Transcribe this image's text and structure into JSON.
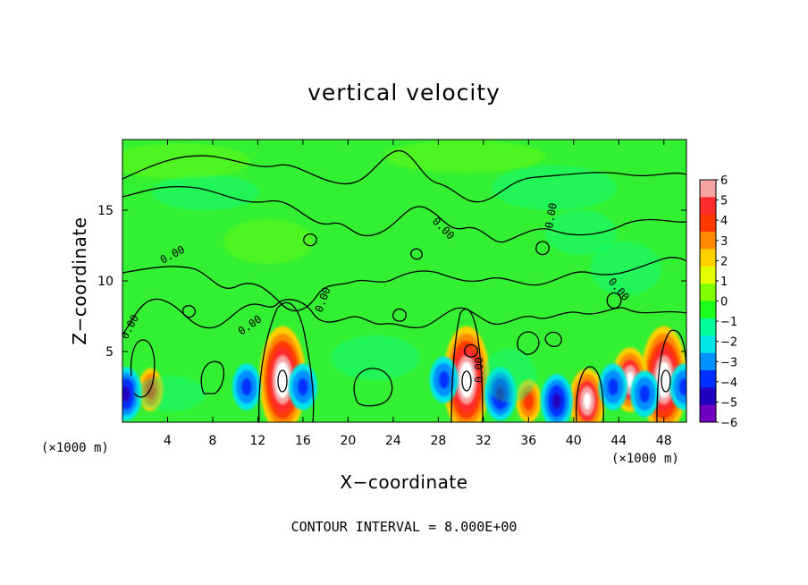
{
  "chart_data": {
    "type": "heatmap",
    "title": "vertical velocity",
    "xlabel": "X−coordinate",
    "ylabel": "Z−coordinate",
    "x_unit_left": "(×1000 m)",
    "x_unit_right": "(×1000 m)",
    "xlim": [
      0,
      50
    ],
    "ylim": [
      0,
      20
    ],
    "x_ticks": [
      "4",
      "8",
      "12",
      "16",
      "20",
      "24",
      "28",
      "32",
      "36",
      "40",
      "44",
      "48"
    ],
    "x_tick_values": [
      4,
      8,
      12,
      16,
      20,
      24,
      28,
      32,
      36,
      40,
      44,
      48
    ],
    "y_ticks": [
      "5",
      "10",
      "15"
    ],
    "y_tick_values": [
      5,
      10,
      15
    ],
    "colorbar": {
      "range": [
        -6,
        6
      ],
      "ticks": [
        "6",
        "5",
        "4",
        "3",
        "2",
        "1",
        "0",
        "−1",
        "−2",
        "−3",
        "−4",
        "−5",
        "−6"
      ],
      "tick_values": [
        6,
        5,
        4,
        3,
        2,
        1,
        0,
        -1,
        -2,
        -3,
        -4,
        -5,
        -6
      ],
      "colors": [
        "#f5a3a3",
        "#ff2a2a",
        "#ff3a00",
        "#ff8a00",
        "#ffd000",
        "#e6ff00",
        "#80ff00",
        "#1cff1c",
        "#00ff9a",
        "#00e6e6",
        "#0090ff",
        "#0030ff",
        "#2000c0",
        "#7000c0"
      ]
    },
    "contour_label": "0.00",
    "contour_interval_text": "CONTOUR INTERVAL = 8.000E+00",
    "features": [
      {
        "x": 14.2,
        "z": 3.0,
        "value": 6
      },
      {
        "x": 30.5,
        "z": 3.0,
        "value": 6
      },
      {
        "x": 48.0,
        "z": 3.0,
        "value": 6
      },
      {
        "x": 41.2,
        "z": 1.5,
        "value": 5
      },
      {
        "x": 36.0,
        "z": 1.5,
        "value": 4
      },
      {
        "x": 2.5,
        "z": 2.3,
        "value": 3.5
      },
      {
        "x": 45.0,
        "z": 3.0,
        "value": 5
      },
      {
        "x": 0.3,
        "z": 2.0,
        "value": -5
      },
      {
        "x": 11.0,
        "z": 2.5,
        "value": -4
      },
      {
        "x": 16.0,
        "z": 2.5,
        "value": -3.5
      },
      {
        "x": 33.5,
        "z": 2.0,
        "value": -5
      },
      {
        "x": 38.5,
        "z": 1.5,
        "value": -5
      },
      {
        "x": 43.5,
        "z": 2.5,
        "value": -4
      },
      {
        "x": 46.3,
        "z": 2.0,
        "value": -4.5
      },
      {
        "x": 28.5,
        "z": 3.0,
        "value": -4
      },
      {
        "x": 49.8,
        "z": 2.5,
        "value": -4
      }
    ]
  }
}
